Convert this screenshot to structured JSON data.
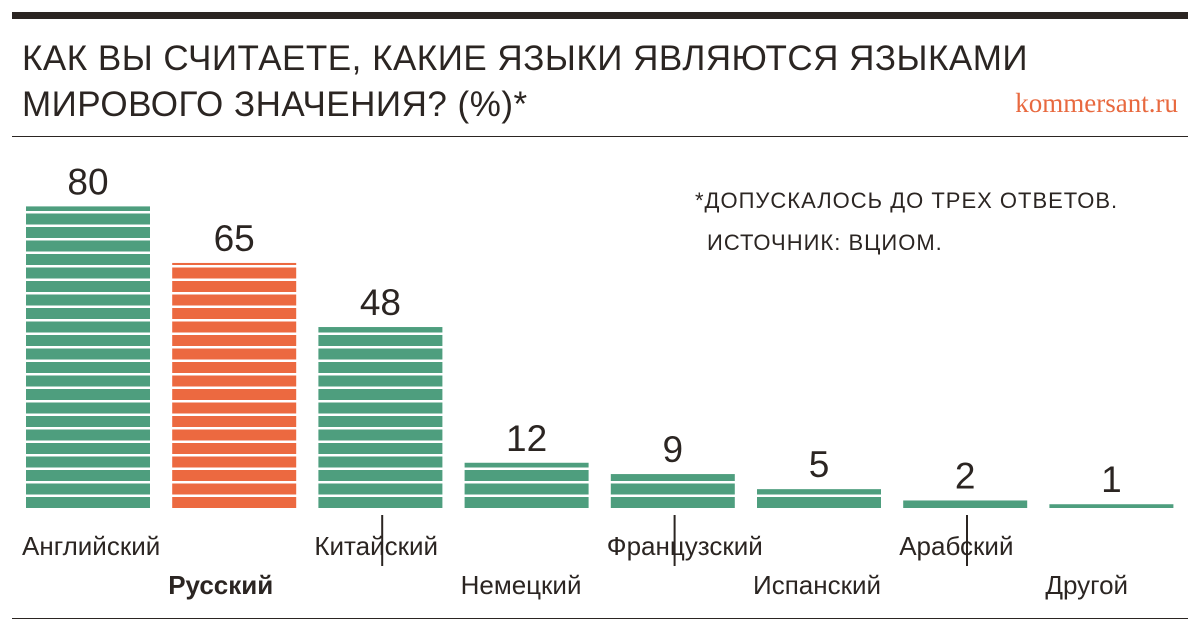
{
  "header": {
    "title_line1": "КАК ВЫ СЧИТАЕТЕ, КАКИЕ ЯЗЫКИ ЯВЛЯЮТСЯ ЯЗЫКАМИ",
    "title_line2": "МИРОВОГО ЗНАЧЕНИЯ? (%)*",
    "brand": "kommersant.ru"
  },
  "notes": {
    "footnote": "*ДОПУСКАЛОСЬ ДО ТРЕХ ОТВЕТОВ.",
    "source": "ИСТОЧНИК: ВЦИОМ."
  },
  "colors": {
    "default_bar": "#4e9e7e",
    "highlight_bar": "#ec6940",
    "text": "#2b2522",
    "brand": "#e8693f"
  },
  "chart_data": {
    "type": "bar",
    "title": "КАК ВЫ СЧИТАЕТЕ, КАКИЕ ЯЗЫКИ ЯВЛЯЮТСЯ ЯЗЫКАМИ МИРОВОГО ЗНАЧЕНИЯ? (%)*",
    "categories": [
      "Английский",
      "Русский",
      "Китайский",
      "Немецкий",
      "Французский",
      "Испанский",
      "Арабский",
      "Другой"
    ],
    "values": [
      80,
      65,
      48,
      12,
      9,
      5,
      2,
      1
    ],
    "highlight": "Русский",
    "ylim": [
      0,
      80
    ],
    "grid": false,
    "legend": "none"
  }
}
